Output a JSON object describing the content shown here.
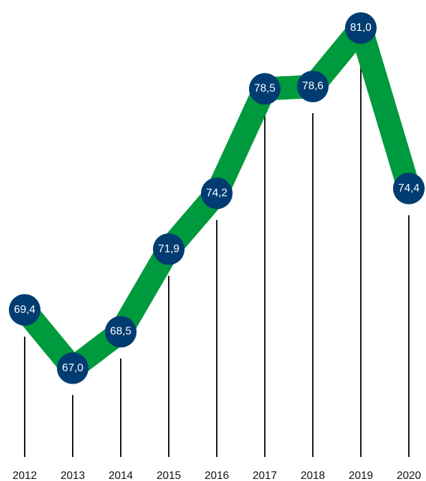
{
  "chart_data": {
    "type": "line",
    "title": "",
    "xlabel": "",
    "ylabel": "",
    "x": [
      "2012",
      "2013",
      "2014",
      "2015",
      "2016",
      "2017",
      "2018",
      "2019",
      "2020"
    ],
    "series": [
      {
        "values": [
          69.4,
          67.0,
          68.5,
          71.9,
          74.2,
          78.5,
          78.6,
          81.0,
          74.4
        ]
      }
    ],
    "value_labels": [
      "69,4",
      "67,0",
      "68,5",
      "71,9",
      "74,2",
      "78,5",
      "78,6",
      "81,0",
      "74,4"
    ],
    "ylim": [
      62.3,
      81.0
    ],
    "grid": false,
    "legend": "none",
    "colors": {
      "line": "#009a3e",
      "marker": "#003c71",
      "marker_text": "#ffffff",
      "stem": "#111111",
      "axis_text": "#111111"
    }
  }
}
